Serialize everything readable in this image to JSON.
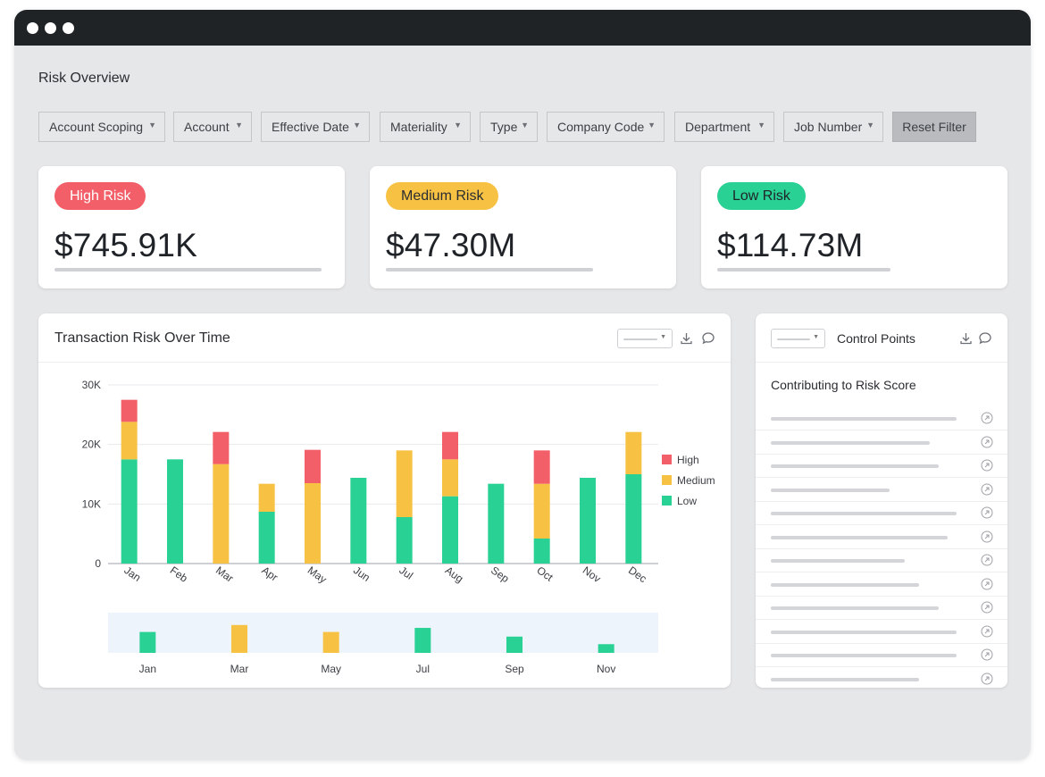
{
  "page": {
    "title": "Risk Overview"
  },
  "filters": [
    "Account Scoping",
    "Account",
    "Effective Date",
    "Materiality",
    "Type",
    "Company Code",
    "Department",
    "Job Number"
  ],
  "reset_label": "Reset Filter",
  "kpis": [
    {
      "label": "High Risk",
      "value": "$745.91K",
      "badge_bg": "#f25f68",
      "badge_fg": "#ffffff"
    },
    {
      "label": "Medium Risk",
      "value": "$47.30M",
      "badge_bg": "#f7c244",
      "badge_fg": "#2a2d31"
    },
    {
      "label": "Low Risk",
      "value": "$114.73M",
      "badge_bg": "#2ad195",
      "badge_fg": "#1f2328"
    }
  ],
  "colors": {
    "high": "#f25f68",
    "medium": "#f7c244",
    "low": "#2ad195",
    "grid": "#e9eaec",
    "axis": "#9ea2a7"
  },
  "icons": [
    "download-icon",
    "comment-icon",
    "chevron-down-icon",
    "arrow-up-right-icon"
  ],
  "transaction_panel": {
    "title": "Transaction Risk Over Time"
  },
  "control_panel": {
    "title": "Control Points",
    "subtitle": "Contributing to Risk Score",
    "row_count": 12
  },
  "chart_data": {
    "type": "bar",
    "stacked": true,
    "title": "Transaction Risk Over Time",
    "categories": [
      "Jan",
      "Feb",
      "Mar",
      "Apr",
      "May",
      "Jun",
      "Jul",
      "Aug",
      "Sep",
      "Oct",
      "Nov",
      "Dec"
    ],
    "series": [
      {
        "name": "Low",
        "color": "#2ad195",
        "values": [
          17500,
          17500,
          0,
          8700,
          0,
          14400,
          7800,
          11300,
          13400,
          4200,
          14400,
          15000
        ]
      },
      {
        "name": "Medium",
        "color": "#f7c244",
        "values": [
          6300,
          0,
          16700,
          4700,
          13500,
          0,
          11200,
          6200,
          0,
          9200,
          0,
          7100
        ]
      },
      {
        "name": "High",
        "color": "#f25f68",
        "values": [
          3700,
          0,
          5400,
          0,
          5600,
          0,
          0,
          4600,
          0,
          5600,
          0,
          0
        ]
      }
    ],
    "yticks": [
      "0",
      "10K",
      "20K",
      "30K"
    ],
    "ylim": [
      0,
      30000
    ],
    "legend": "right",
    "grid": true,
    "navigator": {
      "labels": [
        "Jan",
        "Mar",
        "May",
        "Jul",
        "Sep",
        "Nov"
      ],
      "values": [
        3.6,
        4.8,
        3.6,
        4.3,
        2.8,
        1.5
      ],
      "colors": [
        "#2ad195",
        "#f7c244",
        "#f7c244",
        "#2ad195",
        "#2ad195",
        "#2ad195"
      ]
    }
  }
}
